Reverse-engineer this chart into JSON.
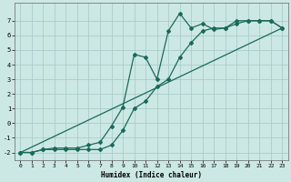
{
  "xlabel": "Humidex (Indice chaleur)",
  "background_color": "#cce8e4",
  "grid_color": "#aacccc",
  "line_color": "#1a6a5a",
  "xlim": [
    -0.5,
    23.5
  ],
  "ylim": [
    -2.5,
    8.2
  ],
  "yticks": [
    -2,
    -1,
    0,
    1,
    2,
    3,
    4,
    5,
    6,
    7
  ],
  "xticks": [
    0,
    1,
    2,
    3,
    4,
    5,
    6,
    7,
    8,
    9,
    10,
    11,
    12,
    13,
    14,
    15,
    16,
    17,
    18,
    19,
    20,
    21,
    22,
    23
  ],
  "curve1_x": [
    0,
    1,
    2,
    3,
    4,
    5,
    6,
    7,
    8,
    9,
    10,
    11,
    12,
    13,
    14,
    15,
    16,
    17,
    18,
    19,
    20,
    21,
    22,
    23
  ],
  "curve1_y": [
    -2,
    -2,
    -1.8,
    -1.7,
    -1.7,
    -1.7,
    -1.5,
    -1.3,
    -0.2,
    1.1,
    4.7,
    4.5,
    3.0,
    6.3,
    7.5,
    6.5,
    6.8,
    6.4,
    6.5,
    7.0,
    7.0,
    7.0,
    7.0,
    6.5
  ],
  "curve2_x": [
    0,
    1,
    2,
    3,
    4,
    5,
    6,
    7,
    8,
    9,
    10,
    11,
    12,
    13,
    14,
    15,
    16,
    17,
    18,
    19,
    20,
    21,
    22,
    23
  ],
  "curve2_y": [
    -2,
    -2,
    -1.8,
    -1.8,
    -1.8,
    -1.8,
    -1.8,
    -1.8,
    -1.5,
    -0.5,
    1.0,
    1.5,
    2.5,
    3.0,
    4.5,
    5.5,
    6.3,
    6.5,
    6.5,
    6.8,
    7.0,
    7.0,
    7.0,
    6.5
  ],
  "curve3_x": [
    0,
    23
  ],
  "curve3_y": [
    -2,
    6.5
  ]
}
